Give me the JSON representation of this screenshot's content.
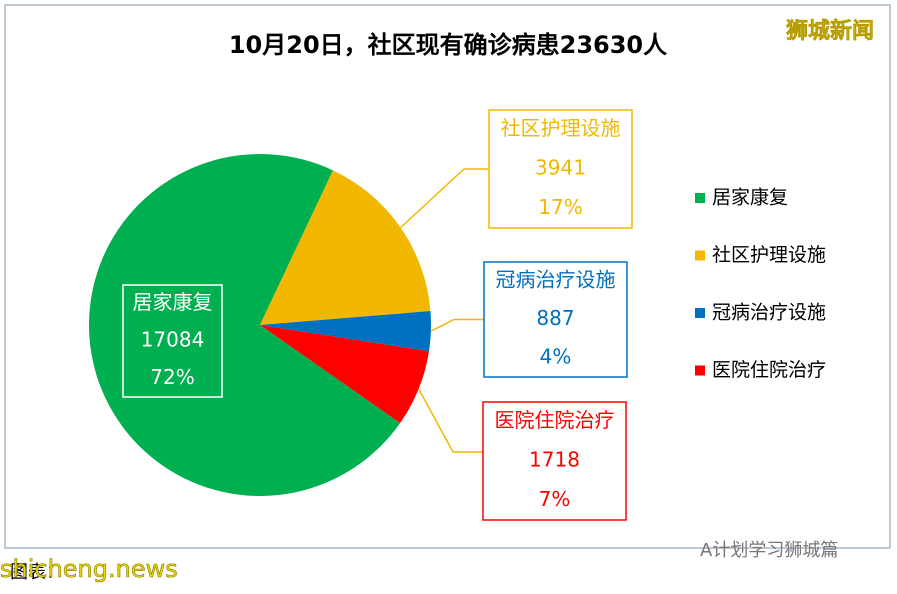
{
  "chart_data": {
    "type": "pie",
    "title": "10月20日，社区现有确诊病患23630人",
    "categories": [
      "居家康复",
      "社区护理设施",
      "冠病治疗设施",
      "医院住院治疗"
    ],
    "values": [
      17084,
      3941,
      887,
      1718
    ],
    "percent_labels": [
      "72%",
      "17%",
      "4%",
      "7%"
    ],
    "colors": [
      "#00b050",
      "#f2b800",
      "#0070c0",
      "#ff0000"
    ],
    "legend": "right"
  },
  "watermark": "狮城新闻",
  "source": "图表：",
  "site": "shicheng.news",
  "account": "A计划学习狮城篇"
}
